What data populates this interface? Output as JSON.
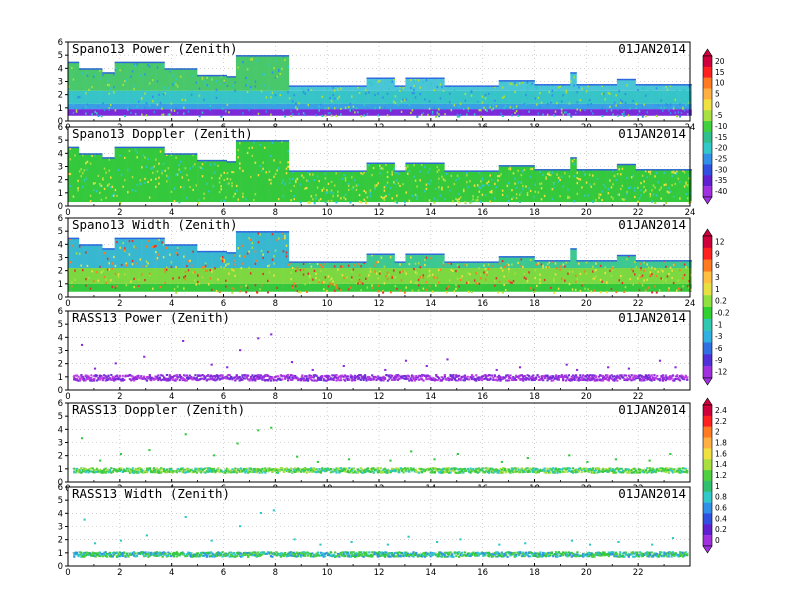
{
  "page": {
    "date": "01JAN2014"
  },
  "colorbars": [
    {
      "id": "cb-power",
      "labels": [
        "20",
        "15",
        "10",
        "5",
        "0",
        "-5",
        "-10",
        "-15",
        "-20",
        "-25",
        "-30",
        "-35",
        "-40"
      ],
      "colors": [
        "#d0003c",
        "#ff2020",
        "#ff7a20",
        "#ffb040",
        "#f0e040",
        "#a8e040",
        "#40d040",
        "#30c090",
        "#30c8c8",
        "#3090e8",
        "#3050e0",
        "#6020d0",
        "#a030e0"
      ]
    },
    {
      "id": "cb-width",
      "labels": [
        "12",
        "9",
        "6",
        "3",
        "1",
        "0.2",
        "-0.2",
        "-1",
        "-3",
        "-6",
        "-9",
        "-12"
      ],
      "colors": [
        "#d0003c",
        "#ff2020",
        "#ff7a20",
        "#ffc040",
        "#e8e040",
        "#90e040",
        "#30d030",
        "#30c8b0",
        "#30b0e0",
        "#3070e0",
        "#5030d8",
        "#a030e0"
      ]
    },
    {
      "id": "cb-rass",
      "labels": [
        "2.4",
        "2.2",
        "2",
        "1.8",
        "1.6",
        "1.4",
        "1.2",
        "1",
        "0.8",
        "0.6",
        "0.4",
        "0.2",
        "0"
      ],
      "colors": [
        "#d0003c",
        "#ff2020",
        "#ff7a20",
        "#ffb040",
        "#f0e040",
        "#a8e040",
        "#50d040",
        "#30c070",
        "#30c8c8",
        "#3090e8",
        "#3050e0",
        "#6020d0",
        "#a030e0"
      ]
    }
  ],
  "chart_data": [
    {
      "type": "heatmap",
      "title": "Spano13 Power (Zenith)",
      "date": "01JAN2014",
      "xlim": [
        0,
        24
      ],
      "ylim": [
        0,
        6
      ],
      "xticks": [
        "0",
        "2",
        "4",
        "6",
        "8",
        "10",
        "12",
        "14",
        "16",
        "18",
        "20",
        "22",
        "24"
      ],
      "yticks": [
        "0",
        "1",
        "2",
        "3",
        "4",
        "5",
        "6"
      ],
      "grid": true,
      "colorbar": "cb-power",
      "top_profile": [
        [
          0,
          4.5
        ],
        [
          0.4,
          4.0
        ],
        [
          1.3,
          3.7
        ],
        [
          1.8,
          4.5
        ],
        [
          3.7,
          4.0
        ],
        [
          5.0,
          3.5
        ],
        [
          6.1,
          3.4
        ],
        [
          6.5,
          5.0
        ],
        [
          8.5,
          2.7
        ],
        [
          11.5,
          3.3
        ],
        [
          12.6,
          2.7
        ],
        [
          13.0,
          3.3
        ],
        [
          14.5,
          2.7
        ],
        [
          16.6,
          3.1
        ],
        [
          18.0,
          2.8
        ],
        [
          19.4,
          3.7
        ],
        [
          19.6,
          2.8
        ],
        [
          21.2,
          3.2
        ],
        [
          21.9,
          2.8
        ],
        [
          24,
          2.8
        ]
      ],
      "bottom_height": 0.4,
      "layers": [
        {
          "y0": 0.4,
          "y1": 0.9,
          "color": "#7a2ad8"
        },
        {
          "y0": 0.9,
          "y1": 1.3,
          "color": "#3a9ee6"
        },
        {
          "y0": 1.3,
          "y1": 2.3,
          "color": "#36c4c8"
        },
        {
          "y0": 2.3,
          "y1": 6.0,
          "color": "#48c6d6"
        }
      ],
      "early_band": {
        "x1": 8.5,
        "y0": 1.6,
        "y1": 2.4,
        "color": "#48c86a"
      }
    },
    {
      "type": "heatmap",
      "title": "Spano13 Doppler (Zenith)",
      "date": "01JAN2014",
      "xlim": [
        0,
        24
      ],
      "ylim": [
        0,
        6
      ],
      "xticks": [
        "0",
        "2",
        "4",
        "6",
        "8",
        "10",
        "12",
        "14",
        "16",
        "18",
        "20",
        "22",
        "24"
      ],
      "yticks": [
        "0",
        "1",
        "2",
        "3",
        "4",
        "5",
        "6"
      ],
      "grid": true,
      "top_profile": [
        [
          0,
          4.5
        ],
        [
          0.4,
          4.0
        ],
        [
          1.3,
          3.7
        ],
        [
          1.8,
          4.5
        ],
        [
          3.7,
          4.0
        ],
        [
          5.0,
          3.5
        ],
        [
          6.1,
          3.4
        ],
        [
          6.5,
          5.0
        ],
        [
          8.5,
          2.7
        ],
        [
          11.5,
          3.3
        ],
        [
          12.6,
          2.7
        ],
        [
          13.0,
          3.3
        ],
        [
          14.5,
          2.7
        ],
        [
          16.6,
          3.1
        ],
        [
          18.0,
          2.8
        ],
        [
          19.4,
          3.7
        ],
        [
          19.6,
          2.8
        ],
        [
          21.2,
          3.2
        ],
        [
          21.9,
          2.8
        ],
        [
          24,
          2.8
        ]
      ],
      "bottom_height": 0.3,
      "layers": [
        {
          "y0": 0.3,
          "y1": 6.0,
          "color": "#34c83c"
        }
      ],
      "early_band": {
        "x1": 8.5,
        "y0": 3.0,
        "y1": 4.5,
        "color": "#44b8c8"
      }
    },
    {
      "type": "heatmap",
      "title": "Spano13 Width (Zenith)",
      "date": "01JAN2014",
      "xlim": [
        0,
        24
      ],
      "ylim": [
        0,
        6
      ],
      "xticks": [
        "0",
        "2",
        "4",
        "6",
        "8",
        "10",
        "12",
        "14",
        "16",
        "18",
        "20",
        "22",
        "24"
      ],
      "yticks": [
        "0",
        "1",
        "2",
        "3",
        "4",
        "5",
        "6"
      ],
      "grid": true,
      "colorbar": "cb-width",
      "top_profile": [
        [
          0,
          4.5
        ],
        [
          0.4,
          4.0
        ],
        [
          1.3,
          3.7
        ],
        [
          1.8,
          4.5
        ],
        [
          3.7,
          4.0
        ],
        [
          5.0,
          3.5
        ],
        [
          6.1,
          3.4
        ],
        [
          6.5,
          5.0
        ],
        [
          8.5,
          2.7
        ],
        [
          11.5,
          3.3
        ],
        [
          12.6,
          2.7
        ],
        [
          13.0,
          3.3
        ],
        [
          14.5,
          2.7
        ],
        [
          16.6,
          3.1
        ],
        [
          18.0,
          2.8
        ],
        [
          19.4,
          3.7
        ],
        [
          19.6,
          2.8
        ],
        [
          21.2,
          3.2
        ],
        [
          21.9,
          2.8
        ],
        [
          24,
          2.8
        ]
      ],
      "bottom_height": 0.4,
      "layers": [
        {
          "y0": 0.4,
          "y1": 1.0,
          "color": "#34c83c"
        },
        {
          "y0": 1.0,
          "y1": 2.2,
          "color": "#7cd840"
        },
        {
          "y0": 2.2,
          "y1": 6.0,
          "color": "#3cc890"
        }
      ],
      "early_band": {
        "x1": 8.5,
        "y0": 2.2,
        "y1": 4.5,
        "color": "#38b8d0"
      }
    },
    {
      "type": "scatter",
      "title": "RASS13 Power (Zenith)",
      "date": "01JAN2014",
      "xlim": [
        0,
        24
      ],
      "ylim": [
        0,
        6
      ],
      "xticks": [
        "0",
        "2",
        "4",
        "6",
        "8",
        "10",
        "12",
        "14",
        "16",
        "18",
        "20",
        "22"
      ],
      "yticks": [
        "0",
        "1",
        "2",
        "3",
        "4",
        "5",
        "6"
      ],
      "grid": true,
      "colorbar": "cb-power",
      "band": {
        "y_mean": 1.0,
        "y_spread": 0.22,
        "colors": [
          "#8a2ad8",
          "#a030e0",
          "#6a30d8",
          "#c040e8"
        ]
      },
      "outliers": [
        [
          0.5,
          3.5
        ],
        [
          1.0,
          1.7
        ],
        [
          1.8,
          2.1
        ],
        [
          2.9,
          2.6
        ],
        [
          4.4,
          3.8
        ],
        [
          5.5,
          2.0
        ],
        [
          6.1,
          1.8
        ],
        [
          6.6,
          3.1
        ],
        [
          7.3,
          4.0
        ],
        [
          7.8,
          4.3
        ],
        [
          8.6,
          2.2
        ],
        [
          9.4,
          1.6
        ],
        [
          10.6,
          1.9
        ],
        [
          12.2,
          1.6
        ],
        [
          13.0,
          2.3
        ],
        [
          13.8,
          1.9
        ],
        [
          14.6,
          2.4
        ],
        [
          16.5,
          1.6
        ],
        [
          17.4,
          1.8
        ],
        [
          19.2,
          2.0
        ],
        [
          19.6,
          1.6
        ],
        [
          20.8,
          1.8
        ],
        [
          21.6,
          1.7
        ],
        [
          22.8,
          2.3
        ],
        [
          23.4,
          1.8
        ]
      ]
    },
    {
      "type": "scatter",
      "title": "RASS13 Doppler (Zenith)",
      "date": "01JAN2014",
      "xlim": [
        0,
        24
      ],
      "ylim": [
        0,
        6
      ],
      "xticks": [
        "0",
        "2",
        "4",
        "6",
        "8",
        "10",
        "12",
        "14",
        "16",
        "18",
        "20",
        "22"
      ],
      "yticks": [
        "0",
        "1",
        "2",
        "3",
        "4",
        "5",
        "6"
      ],
      "grid": true,
      "colorbar": "cb-rass",
      "band": {
        "y_mean": 0.95,
        "y_spread": 0.18,
        "colors": [
          "#34c83c",
          "#50d040",
          "#a8e040",
          "#30c8c8"
        ]
      },
      "outliers": [
        [
          0.5,
          3.4
        ],
        [
          1.2,
          1.7
        ],
        [
          2.0,
          2.2
        ],
        [
          3.1,
          2.5
        ],
        [
          4.5,
          3.7
        ],
        [
          5.6,
          2.1
        ],
        [
          6.5,
          3.0
        ],
        [
          7.3,
          4.0
        ],
        [
          7.8,
          4.2
        ],
        [
          8.8,
          2.0
        ],
        [
          9.6,
          1.6
        ],
        [
          10.8,
          1.8
        ],
        [
          12.4,
          1.7
        ],
        [
          13.2,
          2.4
        ],
        [
          14.1,
          1.8
        ],
        [
          15.0,
          2.2
        ],
        [
          16.7,
          1.6
        ],
        [
          17.7,
          1.9
        ],
        [
          19.3,
          2.1
        ],
        [
          20.0,
          1.6
        ],
        [
          21.1,
          1.8
        ],
        [
          22.4,
          1.7
        ],
        [
          23.2,
          2.2
        ]
      ]
    },
    {
      "type": "scatter",
      "title": "RASS13 Width (Zenith)",
      "date": "01JAN2014",
      "xlim": [
        0,
        24
      ],
      "ylim": [
        0,
        6
      ],
      "xticks": [
        "0",
        "2",
        "4",
        "6",
        "8",
        "10",
        "12",
        "14",
        "16",
        "18",
        "20",
        "22"
      ],
      "yticks": [
        "0",
        "1",
        "2",
        "3",
        "4",
        "5",
        "6"
      ],
      "grid": true,
      "band": {
        "y_mean": 0.95,
        "y_spread": 0.18,
        "colors": [
          "#30c8c8",
          "#34c83c",
          "#3090e8",
          "#50d040"
        ]
      },
      "outliers": [
        [
          0.6,
          3.6
        ],
        [
          1.0,
          1.8
        ],
        [
          2.0,
          2.0
        ],
        [
          3.0,
          2.4
        ],
        [
          4.5,
          3.8
        ],
        [
          5.5,
          2.0
        ],
        [
          6.6,
          3.1
        ],
        [
          7.4,
          4.1
        ],
        [
          7.9,
          4.3
        ],
        [
          8.7,
          2.1
        ],
        [
          9.7,
          1.7
        ],
        [
          10.9,
          1.9
        ],
        [
          12.3,
          1.7
        ],
        [
          13.1,
          2.3
        ],
        [
          14.2,
          1.9
        ],
        [
          15.1,
          2.1
        ],
        [
          16.6,
          1.7
        ],
        [
          17.6,
          1.8
        ],
        [
          19.4,
          2.0
        ],
        [
          20.1,
          1.7
        ],
        [
          21.2,
          1.9
        ],
        [
          22.5,
          1.7
        ],
        [
          23.3,
          2.2
        ]
      ]
    }
  ]
}
